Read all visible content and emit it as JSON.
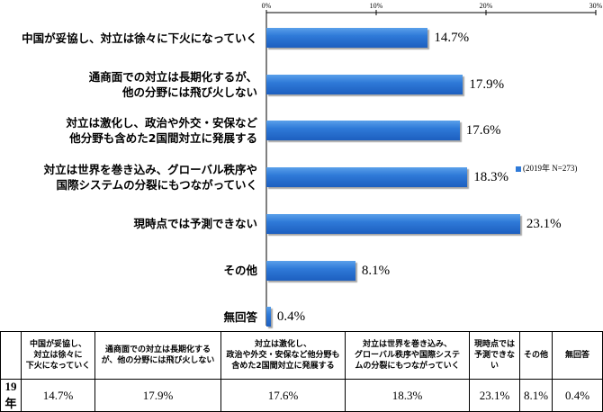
{
  "chart_data": {
    "type": "bar",
    "orientation": "horizontal",
    "title": "",
    "xlabel": "",
    "ylabel": "",
    "xlim": [
      0,
      30
    ],
    "ticks": [
      "0%",
      "10%",
      "20%",
      "30%"
    ],
    "tick_values": [
      0,
      10,
      20,
      30
    ],
    "grid": false,
    "legend": "right",
    "categories": [
      "中国が妥協し、対立は徐々に下火になっていく",
      "通商面での対立は長期化するが、\n他の分野には飛び火しない",
      "対立は激化し、政治や外交・安保など\n他分野も含めた2国間対立に発展する",
      "対立は世界を巻き込み、グローバル秩序や\n国際システムの分裂にもつながっていく",
      "現時点では予測できない",
      "その他",
      "無回答"
    ],
    "series": [
      {
        "name": "(2019年 N=273)",
        "values": [
          14.7,
          17.9,
          17.6,
          18.3,
          23.1,
          8.1,
          0.4
        ],
        "labels": [
          "14.7%",
          "17.9%",
          "17.6%",
          "18.3%",
          "23.1%",
          "8.1%",
          "0.4%"
        ]
      }
    ],
    "colors": {
      "bar": "#2f7ad8"
    }
  },
  "table": {
    "headers": [
      "",
      "中国が妥協し、\n対立は徐々に\n下火になっていく",
      "通商面での対立は長期化する\nが、他の分野には飛び火しない",
      "対立は激化し、\n政治や外交・安保など他分野も\n含めた2国間対立に発展する",
      "対立は世界を巻き込み、\nグローバル秩序や国際システ\nムの分裂にもつながっていく",
      "現時点では\n予測できな\nい",
      "その他",
      "無回答"
    ],
    "row": {
      "year": "19年",
      "values": [
        "14.7%",
        "17.9%",
        "17.6%",
        "18.3%",
        "23.1%",
        "8.1%",
        "0.4%"
      ]
    }
  }
}
